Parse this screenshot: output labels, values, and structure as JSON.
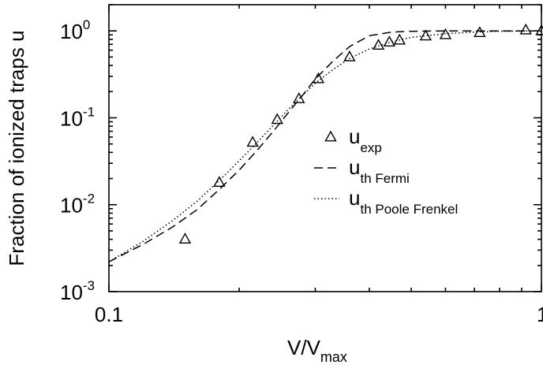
{
  "chart_data": {
    "type": "line",
    "title": "",
    "xlabel": {
      "main": "V/V",
      "sub": "max"
    },
    "ylabel": "Fraction of ionized traps u",
    "xscale": "log",
    "yscale": "log",
    "xlim": [
      0.1,
      1
    ],
    "ylim": [
      0.001,
      2
    ],
    "x_ticks": [
      {
        "value": 0.1,
        "label": "0.1"
      },
      {
        "value": 1,
        "label": "1"
      }
    ],
    "y_ticks": [
      {
        "value": 0.001,
        "base": "10",
        "exp": "-3"
      },
      {
        "value": 0.01,
        "base": "10",
        "exp": "-2"
      },
      {
        "value": 0.1,
        "base": "10",
        "exp": "-1"
      },
      {
        "value": 1,
        "base": "10",
        "exp": "0"
      }
    ],
    "grid": false,
    "legend_position": "right-middle",
    "series": [
      {
        "name": "u",
        "name_sub": "exp",
        "style": "triangle-marker",
        "x": [
          0.15,
          0.18,
          0.215,
          0.245,
          0.275,
          0.305,
          0.36,
          0.42,
          0.445,
          0.47,
          0.54,
          0.6,
          0.72,
          0.92,
          1.0
        ],
        "y": [
          0.004,
          0.018,
          0.052,
          0.095,
          0.165,
          0.28,
          0.5,
          0.68,
          0.74,
          0.78,
          0.87,
          0.9,
          0.95,
          1.02,
          1.0
        ]
      },
      {
        "name": "u",
        "name_sub": "th Fermi",
        "style": "dashed",
        "x": [
          0.1,
          0.12,
          0.14,
          0.16,
          0.18,
          0.2,
          0.22,
          0.24,
          0.26,
          0.28,
          0.3,
          0.33,
          0.36,
          0.4,
          0.45,
          0.5,
          0.6,
          0.7,
          0.8,
          1.0
        ],
        "y": [
          0.0022,
          0.0035,
          0.0055,
          0.0088,
          0.015,
          0.025,
          0.042,
          0.07,
          0.115,
          0.18,
          0.28,
          0.45,
          0.66,
          0.88,
          0.97,
          0.99,
          1.0,
          1.0,
          1.0,
          1.0
        ]
      },
      {
        "name": "u",
        "name_sub": "th Poole Frenkel",
        "style": "dotted",
        "x": [
          0.1,
          0.12,
          0.14,
          0.16,
          0.18,
          0.2,
          0.22,
          0.24,
          0.26,
          0.28,
          0.3,
          0.33,
          0.36,
          0.4,
          0.45,
          0.5,
          0.6,
          0.7,
          0.8,
          1.0
        ],
        "y": [
          0.0022,
          0.0038,
          0.0065,
          0.011,
          0.019,
          0.032,
          0.052,
          0.082,
          0.125,
          0.18,
          0.25,
          0.36,
          0.48,
          0.62,
          0.75,
          0.84,
          0.93,
          0.97,
          0.99,
          1.0
        ]
      }
    ]
  }
}
